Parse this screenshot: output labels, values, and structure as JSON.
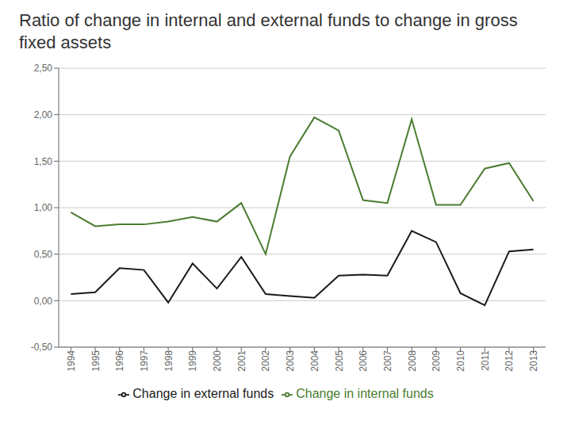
{
  "chart_data": {
    "type": "line",
    "title": "Ratio of change in internal and external funds to change in gross fixed assets",
    "x": [
      1994,
      1995,
      1996,
      1997,
      1998,
      1999,
      2000,
      2001,
      2002,
      2003,
      2004,
      2005,
      2006,
      2007,
      2008,
      2009,
      2010,
      2011,
      2012,
      2013
    ],
    "series": [
      {
        "name": "Change in internal funds",
        "color": "#4a7c2f",
        "values": [
          0.95,
          0.8,
          0.82,
          0.82,
          0.85,
          0.9,
          0.85,
          1.05,
          0.5,
          1.55,
          1.97,
          1.83,
          1.08,
          1.05,
          1.95,
          1.03,
          1.03,
          1.42,
          1.48,
          1.07
        ]
      },
      {
        "name": "Change in external funds",
        "color": "#1a1a1a",
        "values": [
          0.07,
          0.09,
          0.35,
          0.33,
          -0.02,
          0.4,
          0.13,
          0.47,
          0.07,
          0.05,
          0.03,
          0.27,
          0.28,
          0.27,
          0.75,
          0.63,
          0.08,
          -0.05,
          0.53,
          0.55
        ]
      }
    ],
    "xlim": [
      1993.5,
      2013.5
    ],
    "xticks": [
      1994,
      1995,
      1996,
      1997,
      1998,
      1999,
      2000,
      2001,
      2002,
      2003,
      2004,
      2005,
      2006,
      2007,
      2008,
      2009,
      2010,
      2011,
      2012,
      2013
    ],
    "ylim": [
      -0.5,
      2.5
    ],
    "yticks": [
      {
        "value": -0.5,
        "label": "-0,50"
      },
      {
        "value": 0.0,
        "label": "0,00"
      },
      {
        "value": 0.5,
        "label": "0,50"
      },
      {
        "value": 1.0,
        "label": "1,00"
      },
      {
        "value": 1.5,
        "label": "1,50"
      },
      {
        "value": 2.0,
        "label": "2,00"
      },
      {
        "value": 2.5,
        "label": "2,50"
      }
    ],
    "grid": "y",
    "legend": "bottom"
  }
}
